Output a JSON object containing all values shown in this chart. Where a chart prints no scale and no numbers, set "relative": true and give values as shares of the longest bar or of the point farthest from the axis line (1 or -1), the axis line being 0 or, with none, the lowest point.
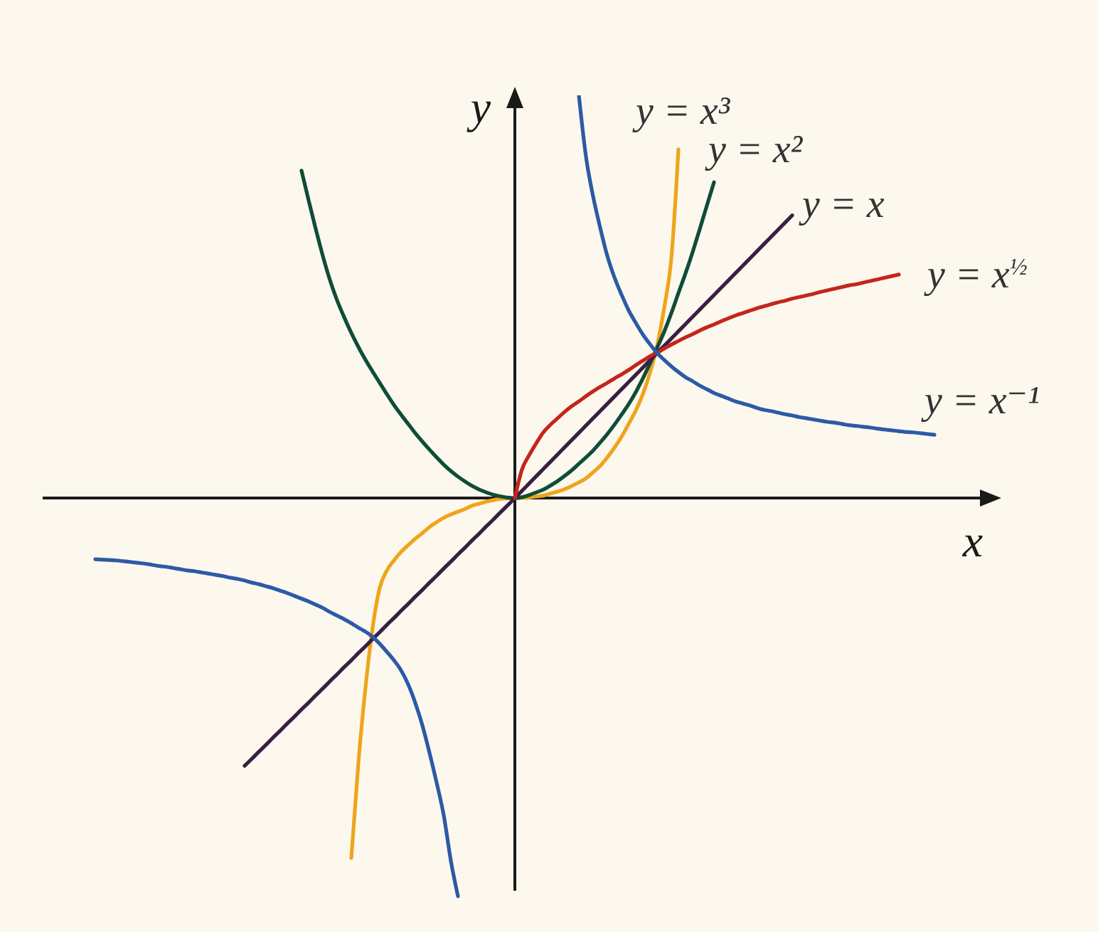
{
  "chart_data": {
    "type": "line",
    "xlabel": "x",
    "ylabel": "y",
    "relative": true,
    "tick_labels": false,
    "marker": "none",
    "categories": [
      null,
      null,
      null,
      null,
      null,
      null,
      null,
      null,
      null,
      null,
      null,
      null,
      null,
      null,
      null,
      null,
      null,
      null,
      null,
      null,
      null,
      null,
      null,
      null,
      null,
      null,
      null,
      null,
      null,
      null,
      null,
      null,
      null,
      null,
      null,
      null,
      null,
      null,
      null,
      null,
      null,
      null,
      null,
      null,
      null,
      null,
      null,
      null,
      null,
      null,
      null,
      null,
      null,
      null,
      null,
      null,
      null,
      null,
      null,
      null,
      null,
      null,
      null,
      null,
      null,
      null,
      null,
      null,
      null,
      null,
      null,
      null,
      null,
      null,
      null,
      null,
      null,
      null,
      null,
      null,
      null,
      null,
      null,
      null,
      null,
      null,
      null,
      null,
      null,
      null,
      null,
      null,
      null,
      null,
      null,
      null,
      null,
      null,
      null,
      null,
      null,
      null,
      null,
      null,
      null,
      null,
      null,
      null,
      null,
      null,
      null,
      null,
      null,
      null,
      null,
      null,
      null,
      null,
      null,
      null,
      null
    ],
    "series": [
      {
        "name": "y = x³",
        "color": "#eea51c",
        "values": [
          null,
          null,
          null,
          null,
          null,
          null,
          null,
          null,
          null,
          null,
          null,
          null,
          null,
          null,
          null,
          null,
          null,
          null,
          null,
          null,
          null,
          null,
          null,
          null,
          null,
          null,
          null,
          null,
          null,
          null,
          null,
          null,
          null,
          null,
          null,
          null,
          null,
          -0.894,
          -0.657,
          -0.47,
          -0.322,
          -0.223,
          -0.18,
          -0.155,
          -0.134,
          -0.117,
          -0.101,
          -0.087,
          -0.072,
          -0.06,
          -0.049,
          -0.041,
          -0.034,
          -0.027,
          -0.019,
          -0.014,
          -0.009,
          -0.005,
          -0.002,
          -0.001,
          0,
          0,
          0.001,
          0.004,
          0.006,
          0.011,
          0.016,
          0.022,
          0.03,
          0.039,
          0.049,
          0.064,
          0.08,
          0.101,
          0.125,
          0.152,
          0.184,
          0.217,
          0.258,
          0.311,
          0.378,
          0.473,
          0.594,
          0.866,
          null,
          null,
          null,
          null,
          null,
          null,
          null,
          null,
          null,
          null,
          null,
          null,
          null,
          null,
          null,
          null,
          null,
          null,
          null,
          null,
          null,
          null,
          null,
          null,
          null,
          null,
          null,
          null,
          null,
          null,
          null,
          null,
          null,
          null,
          null,
          null,
          null
        ]
      },
      {
        "name": "y = x²",
        "color": "#0f4c3a",
        "values": [
          null,
          null,
          null,
          null,
          null,
          null,
          null,
          null,
          null,
          null,
          null,
          null,
          null,
          null,
          null,
          null,
          null,
          null,
          null,
          null,
          null,
          null,
          null,
          null,
          null,
          null,
          null,
          null,
          null,
          null,
          0.813,
          0.739,
          0.668,
          0.601,
          0.541,
          0.491,
          0.449,
          0.41,
          0.375,
          0.343,
          0.314,
          0.286,
          0.258,
          0.231,
          0.207,
          0.184,
          0.161,
          0.14,
          0.12,
          0.101,
          0.083,
          0.067,
          0.053,
          0.041,
          0.03,
          0.021,
          0.014,
          0.008,
          0.004,
          0.001,
          0,
          0.002,
          0.007,
          0.014,
          0.021,
          0.031,
          0.042,
          0.055,
          0.069,
          0.085,
          0.101,
          0.118,
          0.138,
          0.159,
          0.182,
          0.207,
          0.233,
          0.263,
          0.297,
          0.334,
          0.373,
          0.413,
          0.459,
          0.509,
          0.558,
          0.611,
          0.668,
          0.726,
          0.784,
          null,
          null,
          null,
          null,
          null,
          null,
          null,
          null,
          null,
          null,
          null,
          null,
          null,
          null,
          null,
          null,
          null,
          null,
          null,
          null,
          null,
          null,
          null,
          null,
          null,
          null,
          null,
          null,
          null,
          null,
          null,
          null
        ]
      },
      {
        "name": "y = x",
        "color": "#3a1f42",
        "values": [
          null,
          null,
          null,
          null,
          null,
          null,
          null,
          null,
          null,
          null,
          null,
          null,
          null,
          null,
          null,
          null,
          null,
          null,
          null,
          null,
          null,
          null,
          -0.665,
          -0.648,
          -0.63,
          -0.613,
          -0.595,
          -0.578,
          -0.56,
          -0.543,
          -0.525,
          -0.508,
          -0.49,
          -0.473,
          -0.455,
          -0.438,
          -0.42,
          -0.403,
          -0.385,
          -0.368,
          -0.35,
          -0.333,
          -0.315,
          -0.298,
          -0.28,
          -0.263,
          -0.245,
          -0.228,
          -0.21,
          -0.193,
          -0.175,
          -0.158,
          -0.14,
          -0.123,
          -0.105,
          -0.088,
          -0.07,
          -0.053,
          -0.035,
          -0.018,
          0,
          0.018,
          0.036,
          0.054,
          0.072,
          0.09,
          0.108,
          0.126,
          0.144,
          0.162,
          0.18,
          0.198,
          0.216,
          0.234,
          0.252,
          0.27,
          0.288,
          0.306,
          0.324,
          0.342,
          0.36,
          0.378,
          0.396,
          0.414,
          0.432,
          0.45,
          0.468,
          0.486,
          0.504,
          0.522,
          0.54,
          0.558,
          0.576,
          0.594,
          0.612,
          0.63,
          0.648,
          0.666,
          0.684,
          0.702,
          null,
          null,
          null,
          null,
          null,
          null,
          null,
          null,
          null,
          null,
          null,
          null,
          null,
          null,
          null,
          null,
          null,
          null,
          null,
          null,
          null
        ]
      },
      {
        "name": "y = x$^{½}$",
        "color": "#c4261c",
        "values": [
          null,
          null,
          null,
          null,
          null,
          null,
          null,
          null,
          null,
          null,
          null,
          null,
          null,
          null,
          null,
          null,
          null,
          null,
          null,
          null,
          null,
          null,
          null,
          null,
          null,
          null,
          null,
          null,
          null,
          null,
          null,
          null,
          null,
          null,
          null,
          null,
          null,
          null,
          null,
          null,
          null,
          null,
          null,
          null,
          null,
          null,
          null,
          null,
          null,
          null,
          null,
          null,
          null,
          null,
          null,
          null,
          null,
          null,
          null,
          null,
          0,
          0.071,
          0.106,
          0.136,
          0.163,
          0.182,
          0.198,
          0.214,
          0.228,
          0.24,
          0.253,
          0.265,
          0.276,
          0.286,
          0.297,
          0.307,
          0.318,
          0.33,
          0.341,
          0.352,
          0.361,
          0.371,
          0.381,
          0.39,
          0.399,
          0.407,
          0.416,
          0.424,
          0.431,
          0.439,
          0.446,
          0.453,
          0.459,
          0.465,
          0.471,
          0.476,
          0.481,
          0.486,
          0.49,
          0.495,
          0.499,
          0.503,
          0.507,
          0.512,
          0.516,
          0.52,
          0.524,
          0.528,
          0.531,
          0.535,
          0.539,
          0.543,
          0.547,
          0.551,
          0.555,
          null,
          null,
          null,
          null,
          null,
          null
        ]
      },
      {
        "name": "y = x⁻¹",
        "color": "#2c5aa6",
        "values": [
          null,
          -0.152,
          -0.153,
          -0.154,
          -0.155,
          -0.157,
          -0.159,
          -0.161,
          -0.163,
          -0.166,
          -0.169,
          -0.171,
          -0.174,
          -0.177,
          -0.18,
          -0.182,
          -0.185,
          -0.188,
          -0.191,
          -0.194,
          -0.198,
          -0.201,
          -0.205,
          -0.21,
          -0.214,
          -0.219,
          -0.224,
          -0.23,
          -0.236,
          -0.243,
          -0.25,
          -0.257,
          -0.265,
          -0.273,
          -0.283,
          -0.292,
          -0.301,
          -0.311,
          -0.322,
          -0.332,
          -0.345,
          -0.362,
          -0.382,
          -0.403,
          -0.428,
          -0.463,
          -0.509,
          -0.565,
          -0.633,
          -0.707,
          -0.788,
          -0.901,
          -0.989,
          null,
          null,
          null,
          null,
          null,
          null,
          null,
          null,
          null,
          null,
          null,
          null,
          null,
          null,
          null,
          null,
          1.0,
          0.848,
          0.749,
          0.671,
          0.601,
          0.548,
          0.505,
          0.466,
          0.435,
          0.406,
          0.382,
          0.36,
          0.343,
          0.327,
          0.313,
          0.3,
          0.29,
          0.279,
          0.27,
          0.261,
          0.254,
          0.247,
          0.24,
          0.235,
          0.23,
          0.224,
          0.219,
          0.216,
          0.212,
          0.208,
          0.205,
          0.201,
          0.198,
          0.195,
          0.192,
          0.189,
          0.187,
          0.184,
          0.181,
          0.179,
          0.177,
          0.175,
          0.172,
          0.17,
          0.168,
          0.166,
          0.164,
          0.163,
          0.161,
          0.159,
          0.157,
          null
        ]
      }
    ]
  }
}
